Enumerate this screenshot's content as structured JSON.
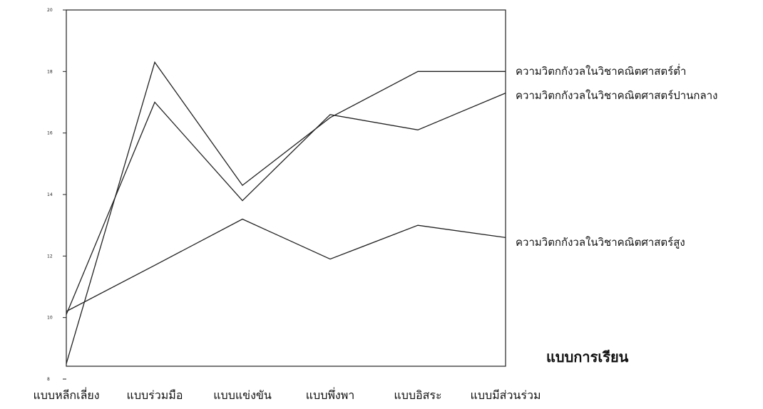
{
  "chart_data": {
    "type": "line",
    "title": "",
    "xlabel": "แบบการเรียน",
    "ylabel": "",
    "ylim": [
      8,
      20
    ],
    "yticks": [
      8,
      10,
      12,
      14,
      16,
      18,
      20
    ],
    "ytick_labels": [
      "8",
      "10",
      "12",
      "14",
      "16",
      "18",
      "20"
    ],
    "grid": false,
    "legend": "labels-at-line-ends-right",
    "categories": [
      "แบบหลีกเลี่ยง",
      "แบบร่วมมือ",
      "แบบแข่งขัน",
      "แบบพึ่งพา",
      "แบบอิสระ",
      "แบบมีส่วนร่วม"
    ],
    "series": [
      {
        "name": "ความวิตกกังวลในวิชาคณิตศาสตร์ต่ำ",
        "values": [
          8.5,
          18.3,
          14.3,
          16.5,
          18.0,
          18.0
        ]
      },
      {
        "name": "ความวิตกกังวลในวิชาคณิตศาสตร์ปานกลาง",
        "values": [
          10.1,
          17.0,
          13.8,
          16.6,
          16.1,
          17.3
        ]
      },
      {
        "name": "ความวิตกกังวลในวิชาคณิตศาสตร์สูง",
        "values": [
          10.2,
          11.7,
          13.2,
          11.9,
          13.0,
          12.6
        ]
      }
    ]
  }
}
